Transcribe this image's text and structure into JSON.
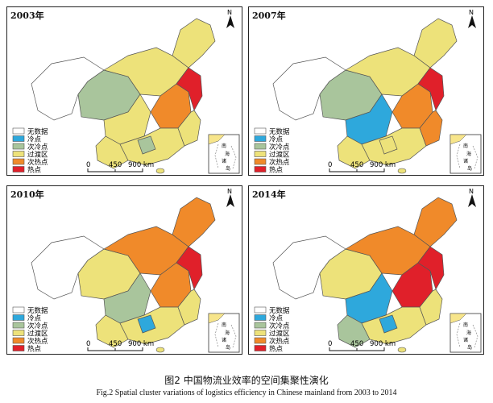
{
  "colors": {
    "no_data": "#ffffff",
    "cold": "#2ea8dc",
    "sub_cold": "#a9c59c",
    "transition": "#ede27a",
    "sub_hot": "#f08a2a",
    "hot": "#e0202a",
    "inset_sea": "#f7e58b"
  },
  "legend": [
    "无数据",
    "冷点",
    "次冷点",
    "过渡区",
    "次热点",
    "热点"
  ],
  "north_letter": "N",
  "scale": {
    "ticks": [
      "0",
      "450",
      "900 km"
    ]
  },
  "inset_labels": [
    "南",
    "海",
    "诸",
    "岛"
  ],
  "panels": [
    {
      "year": "2003年",
      "regions": {
        "west": "no_data",
        "northeast": "transition",
        "north": "transition",
        "qinghai": "sub_cold",
        "sichuan": "transition",
        "yunnan": "transition",
        "central": "sub_hot",
        "hot_core": "hot",
        "south": "transition",
        "coast": "transition",
        "southwest_spot": "sub_cold"
      }
    },
    {
      "year": "2007年",
      "regions": {
        "west": "no_data",
        "northeast": "transition",
        "north": "transition",
        "qinghai": "sub_cold",
        "sichuan": "cold",
        "yunnan": "transition",
        "central": "sub_hot",
        "hot_core": "hot",
        "south": "transition",
        "coast": "sub_hot",
        "southwest_spot": "transition"
      }
    },
    {
      "year": "2010年",
      "regions": {
        "west": "no_data",
        "northeast": "sub_hot",
        "north": "sub_hot",
        "qinghai": "transition",
        "sichuan": "sub_cold",
        "yunnan": "transition",
        "central": "sub_hot",
        "hot_core": "hot",
        "south": "transition",
        "coast": "transition",
        "southwest_spot": "cold"
      }
    },
    {
      "year": "2014年",
      "regions": {
        "west": "no_data",
        "northeast": "sub_hot",
        "north": "sub_hot",
        "qinghai": "transition",
        "sichuan": "cold",
        "yunnan": "sub_cold",
        "central": "hot",
        "hot_core": "hot",
        "south": "transition",
        "coast": "transition",
        "southwest_spot": "cold"
      }
    }
  ],
  "caption_zh": "图2 中国物流业效率的空间集聚性演化",
  "caption_en": "Fig.2 Spatial cluster variations of logistics efficiency in Chinese mainland from 2003 to 2014"
}
